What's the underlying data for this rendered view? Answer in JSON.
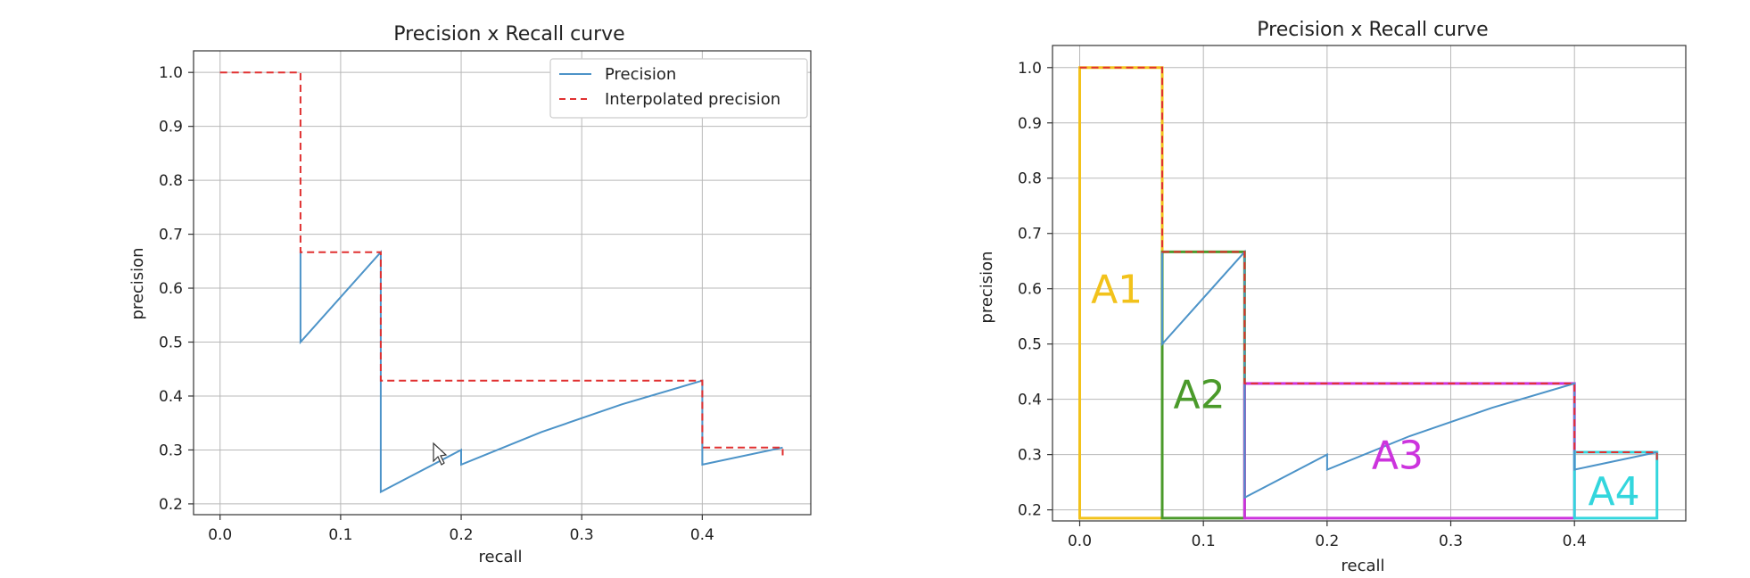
{
  "chart_data": [
    {
      "type": "line",
      "title": "Precision x Recall curve",
      "xlabel": "recall",
      "ylabel": "precision",
      "xlim": [
        -0.022,
        0.49
      ],
      "ylim": [
        0.18,
        1.04
      ],
      "xticks": [
        "0.0",
        "0.1",
        "0.2",
        "0.3",
        "0.4"
      ],
      "yticks": [
        "0.2",
        "0.3",
        "0.4",
        "0.5",
        "0.6",
        "0.7",
        "0.8",
        "0.9",
        "1.0"
      ],
      "grid": true,
      "legend_position": "top-right",
      "series": [
        {
          "name": "Precision",
          "color": "#4c93c8",
          "dash": "solid",
          "x": [
            0.0667,
            0.0667,
            0.1333,
            0.1333,
            0.2,
            0.2,
            0.2667,
            0.3333,
            0.4,
            0.4,
            0.4667
          ],
          "y": [
            0.6667,
            0.5,
            0.6667,
            0.2222,
            0.3,
            0.2727,
            0.3333,
            0.3846,
            0.4286,
            0.2727,
            0.3043
          ]
        },
        {
          "name": "Interpolated precision",
          "color": "#e03030",
          "dash": "dashed",
          "x": [
            0.0,
            0.0667,
            0.0667,
            0.1333,
            0.1333,
            0.4,
            0.4,
            0.4667,
            0.4667
          ],
          "y": [
            1.0,
            1.0,
            0.6667,
            0.6667,
            0.4286,
            0.4286,
            0.3043,
            0.3043,
            0.29
          ]
        }
      ]
    },
    {
      "type": "line",
      "title": "Precision x Recall curve",
      "xlabel": "recall",
      "ylabel": "precision",
      "xlim": [
        -0.022,
        0.49
      ],
      "ylim": [
        0.18,
        1.04
      ],
      "xticks": [
        "0.0",
        "0.1",
        "0.2",
        "0.3",
        "0.4"
      ],
      "yticks": [
        "0.2",
        "0.3",
        "0.4",
        "0.5",
        "0.6",
        "0.7",
        "0.8",
        "0.9",
        "1.0"
      ],
      "grid": true,
      "series": [
        {
          "color": "#4c93c8",
          "dash": "solid",
          "x": [
            0.0667,
            0.0667,
            0.1333,
            0.1333,
            0.2,
            0.2,
            0.2667,
            0.3333,
            0.4,
            0.4,
            0.4667
          ],
          "y": [
            0.6667,
            0.5,
            0.6667,
            0.2222,
            0.3,
            0.2727,
            0.3333,
            0.3846,
            0.4286,
            0.2727,
            0.3043
          ]
        },
        {
          "color": "#e03030",
          "dash": "dashed",
          "x": [
            0.0,
            0.0667,
            0.0667,
            0.1333,
            0.1333,
            0.4,
            0.4,
            0.4667,
            0.4667
          ],
          "y": [
            1.0,
            1.0,
            0.6667,
            0.6667,
            0.4286,
            0.4286,
            0.3043,
            0.3043,
            0.29
          ]
        }
      ],
      "areas": [
        {
          "label": "A1",
          "color": "#f2c21b",
          "x0": 0.0,
          "x1": 0.0667,
          "y0": 0.185,
          "y1": 1.0,
          "label_at": [
            0.03,
            0.6
          ]
        },
        {
          "label": "A2",
          "color": "#4a9a2a",
          "x0": 0.0667,
          "x1": 0.1333,
          "y0": 0.185,
          "y1": 0.6667,
          "label_at": [
            0.0967,
            0.41
          ]
        },
        {
          "label": "A3",
          "color": "#cc33dd",
          "x0": 0.1333,
          "x1": 0.4,
          "y0": 0.185,
          "y1": 0.4286,
          "label_at": [
            0.257,
            0.3
          ]
        },
        {
          "label": "A4",
          "color": "#33d6dd",
          "x0": 0.4,
          "x1": 0.4667,
          "y0": 0.185,
          "y1": 0.3043,
          "label_at": [
            0.432,
            0.235
          ]
        }
      ]
    }
  ]
}
